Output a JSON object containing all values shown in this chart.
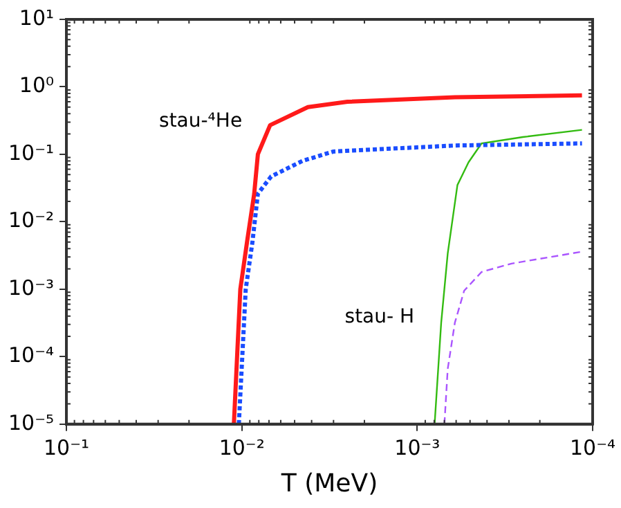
{
  "chart_data": {
    "type": "line",
    "xlabel": "T (MeV)",
    "log": "xy",
    "grid": false,
    "legend": false,
    "marker": "none",
    "xlim": [
      0.1,
      0.0001
    ],
    "ylim": [
      1e-05,
      10
    ],
    "xticks": [
      {
        "value": 0.1,
        "label": "10⁻¹"
      },
      {
        "value": 0.01,
        "label": "10⁻²"
      },
      {
        "value": 0.001,
        "label": "10⁻³"
      },
      {
        "value": 0.0001,
        "label": "10⁻⁴"
      }
    ],
    "yticks": [
      {
        "value": 1e-05,
        "label": "10⁻⁵"
      },
      {
        "value": 0.0001,
        "label": "10⁻⁴"
      },
      {
        "value": 0.001,
        "label": "10⁻³"
      },
      {
        "value": 0.01,
        "label": "10⁻²"
      },
      {
        "value": 0.1,
        "label": "10⁻¹"
      },
      {
        "value": 1,
        "label": "10⁰"
      },
      {
        "value": 10,
        "label": "10¹"
      }
    ],
    "series": [
      {
        "color": "#ff1a1a",
        "line_style": "solid",
        "x": [
          0.0111,
          0.0102,
          0.0093,
          0.0085,
          0.0081,
          0.0069,
          0.0042,
          0.0025,
          0.00061,
          0.000115
        ],
        "values": [
          1e-05,
          0.001,
          0.0054,
          0.026,
          0.1,
          0.27,
          0.5,
          0.6,
          0.7,
          0.75
        ]
      },
      {
        "color": "#1a4dff",
        "line_style": "dotted",
        "x": [
          0.0104,
          0.0095,
          0.0087,
          0.0081,
          0.0068,
          0.0045,
          0.003,
          0.00061,
          0.000115
        ],
        "values": [
          1e-05,
          0.001,
          0.005,
          0.026,
          0.047,
          0.08,
          0.11,
          0.135,
          0.145
        ]
      },
      {
        "color": "#33bb11",
        "line_style": "solid",
        "x": [
          0.000796,
          0.00073,
          0.00067,
          0.00059,
          0.00051,
          0.00043,
          0.00025,
          0.000115
        ],
        "values": [
          1e-05,
          0.00032,
          0.0034,
          0.035,
          0.076,
          0.145,
          0.18,
          0.23
        ]
      },
      {
        "color": "#aa55ff",
        "line_style": "dashed",
        "x": [
          0.0007,
          0.00067,
          0.00061,
          0.00054,
          0.00043,
          0.00029,
          0.000115
        ],
        "values": [
          1e-05,
          6.6e-05,
          0.00032,
          0.00095,
          0.0018,
          0.0024,
          0.0036
        ]
      }
    ],
    "annotations": [
      "stau-⁴He",
      "stau- H"
    ]
  }
}
